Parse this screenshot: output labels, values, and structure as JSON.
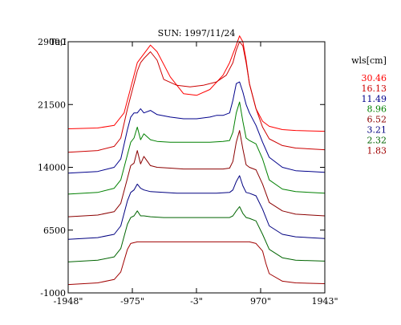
{
  "chart_data": {
    "type": "line",
    "title": "SUN: 1997/11/24",
    "ylabel": "Ta,I",
    "xlabel": "",
    "xlim": [
      -1948,
      1943
    ],
    "ylim": [
      -1000,
      29000
    ],
    "x_ticks": [
      {
        "value": -1948,
        "label": "-1948\""
      },
      {
        "value": -975,
        "label": "-975\""
      },
      {
        "value": -3,
        "label": "-3\""
      },
      {
        "value": 970,
        "label": "970\""
      },
      {
        "value": 1943,
        "label": "1943\""
      }
    ],
    "y_ticks": [
      {
        "value": 29000,
        "label": "29000"
      },
      {
        "value": 21500,
        "label": "21500"
      },
      {
        "value": 14000,
        "label": "14000"
      },
      {
        "value": 6500,
        "label": "6500"
      },
      {
        "value": -1000,
        "label": "-1000"
      }
    ],
    "grid": false,
    "legend": {
      "title": "wls[cm]",
      "placement": "right",
      "entries": [
        "30.46",
        "16.13",
        "11.49",
        "8.96",
        "6.52",
        "3.21",
        "2.32",
        "1.83"
      ]
    },
    "series": [
      {
        "name": "30.46",
        "color": "#ff0000",
        "x": [
          -1948,
          -1500,
          -1250,
          -1100,
          -1000,
          -900,
          -700,
          -600,
          -400,
          -200,
          0,
          200,
          400,
          500,
          600,
          650,
          700,
          750,
          800,
          900,
          1000,
          1100,
          1300,
          1500,
          1943
        ],
        "y": [
          18600,
          18700,
          19000,
          20500,
          23500,
          26500,
          28600,
          27800,
          24800,
          22800,
          22600,
          23300,
          25000,
          26500,
          28600,
          29700,
          29000,
          26800,
          24000,
          21000,
          19500,
          18900,
          18500,
          18400,
          18300
        ]
      },
      {
        "name": "16.13",
        "color": "#cc0000",
        "x": [
          -1948,
          -1500,
          -1250,
          -1150,
          -1050,
          -950,
          -900,
          -850,
          -800,
          -700,
          -600,
          -500,
          -300,
          -100,
          100,
          300,
          450,
          550,
          600,
          650,
          700,
          750,
          800,
          900,
          1000,
          1100,
          1300,
          1500,
          1943
        ],
        "y": [
          15800,
          16000,
          16500,
          17500,
          21000,
          24000,
          25500,
          26500,
          27000,
          27800,
          26800,
          24500,
          23800,
          23600,
          23800,
          24200,
          25000,
          26500,
          28000,
          29000,
          28500,
          26500,
          24000,
          21000,
          18800,
          17400,
          16600,
          16300,
          16100
        ]
      },
      {
        "name": "11.49",
        "color": "#00008b",
        "x": [
          -1948,
          -1500,
          -1250,
          -1150,
          -1050,
          -1000,
          -950,
          -900,
          -850,
          -800,
          -700,
          -600,
          -400,
          -200,
          0,
          200,
          300,
          400,
          500,
          550,
          600,
          650,
          700,
          750,
          800,
          900,
          1000,
          1100,
          1300,
          1500,
          1943
        ],
        "y": [
          13300,
          13500,
          14000,
          15000,
          18500,
          20000,
          20500,
          20500,
          21000,
          20500,
          20800,
          20300,
          20000,
          19800,
          19800,
          20000,
          20200,
          20200,
          20500,
          22000,
          24000,
          24200,
          23000,
          21500,
          20500,
          19000,
          17000,
          15200,
          14000,
          13600,
          13400
        ]
      },
      {
        "name": "8.96",
        "color": "#008000",
        "x": [
          -1948,
          -1500,
          -1250,
          -1150,
          -1050,
          -1000,
          -950,
          -900,
          -850,
          -800,
          -700,
          -600,
          -400,
          -200,
          0,
          200,
          400,
          500,
          550,
          600,
          650,
          700,
          750,
          800,
          900,
          1000,
          1100,
          1300,
          1500,
          1943
        ],
        "y": [
          10800,
          11000,
          11500,
          12500,
          15500,
          17000,
          17500,
          18800,
          17300,
          18000,
          17300,
          17100,
          17000,
          17000,
          17000,
          17000,
          17100,
          17200,
          18200,
          20500,
          21800,
          19500,
          17500,
          17200,
          16800,
          15000,
          12500,
          11400,
          11100,
          10900
        ]
      },
      {
        "name": "6.52",
        "color": "#8b0000",
        "x": [
          -1948,
          -1500,
          -1250,
          -1150,
          -1050,
          -1000,
          -950,
          -900,
          -850,
          -800,
          -700,
          -600,
          -400,
          -200,
          0,
          200,
          400,
          500,
          550,
          600,
          650,
          700,
          750,
          800,
          900,
          1000,
          1100,
          1300,
          1500,
          1943
        ],
        "y": [
          8100,
          8300,
          8700,
          9700,
          12700,
          14200,
          14500,
          16000,
          14400,
          15300,
          14200,
          14000,
          13900,
          13800,
          13800,
          13800,
          13800,
          13900,
          14700,
          17000,
          18400,
          16200,
          14300,
          14000,
          13700,
          12000,
          9800,
          8800,
          8400,
          8200
        ]
      },
      {
        "name": "3.21",
        "color": "#000080",
        "x": [
          -1948,
          -1500,
          -1250,
          -1150,
          -1050,
          -1000,
          -950,
          -900,
          -850,
          -800,
          -700,
          -500,
          -300,
          0,
          300,
          500,
          550,
          600,
          650,
          700,
          750,
          800,
          900,
          1000,
          1100,
          1300,
          1500,
          1943
        ],
        "y": [
          5400,
          5600,
          6000,
          7000,
          10000,
          11000,
          11300,
          12000,
          11500,
          11300,
          11100,
          11000,
          10900,
          10900,
          10900,
          11000,
          11300,
          12300,
          13000,
          11800,
          11000,
          10900,
          10600,
          9000,
          7000,
          6000,
          5700,
          5500
        ]
      },
      {
        "name": "2.32",
        "color": "#006400",
        "x": [
          -1948,
          -1500,
          -1250,
          -1150,
          -1050,
          -1000,
          -950,
          -900,
          -850,
          -800,
          -700,
          -500,
          -300,
          0,
          300,
          500,
          550,
          600,
          650,
          700,
          750,
          800,
          900,
          1000,
          1100,
          1300,
          1500,
          1943
        ],
        "y": [
          2700,
          2900,
          3300,
          4300,
          7200,
          8000,
          8200,
          8800,
          8200,
          8200,
          8100,
          8000,
          8000,
          8000,
          8000,
          8000,
          8200,
          8800,
          9300,
          8500,
          8000,
          7900,
          7600,
          6000,
          4200,
          3200,
          2900,
          2800
        ]
      },
      {
        "name": "1.83",
        "color": "#a00000",
        "x": [
          -1948,
          -1500,
          -1250,
          -1150,
          -1050,
          -1000,
          -950,
          -900,
          -800,
          -600,
          -300,
          0,
          300,
          600,
          800,
          900,
          1000,
          1050,
          1100,
          1300,
          1500,
          1943
        ],
        "y": [
          0,
          200,
          600,
          1500,
          4200,
          4900,
          5000,
          5100,
          5100,
          5100,
          5100,
          5100,
          5100,
          5100,
          5100,
          4900,
          4000,
          2500,
          1300,
          400,
          200,
          100
        ]
      }
    ]
  }
}
